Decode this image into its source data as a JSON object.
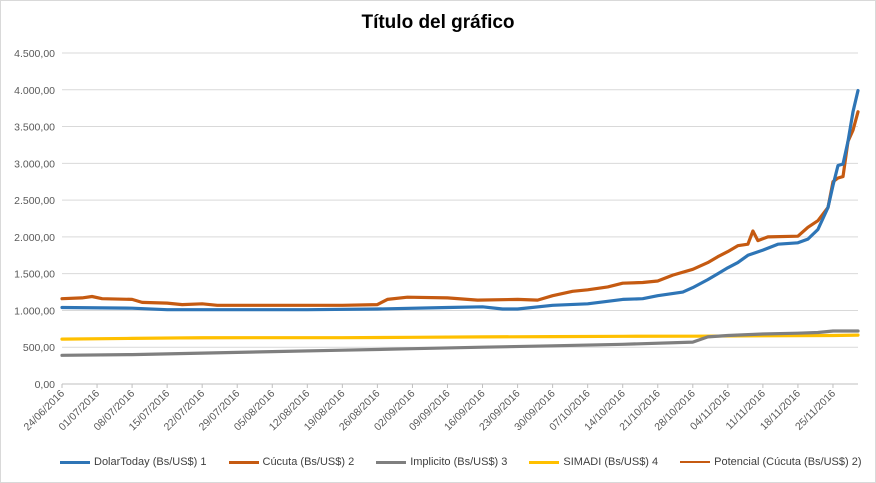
{
  "chart_data": {
    "type": "line",
    "title": "Título del gráfico",
    "xlabel": "",
    "ylabel": "",
    "ylim": [
      0,
      4500
    ],
    "yticks": [
      "0,00",
      "500,00",
      "1.000,00",
      "1.500,00",
      "2.000,00",
      "2.500,00",
      "3.000,00",
      "3.500,00",
      "4.000,00",
      "4.500,00"
    ],
    "xtick_labels": [
      "24/06/2016",
      "01/07/2016",
      "08/07/2016",
      "15/07/2016",
      "22/07/2016",
      "29/07/2016",
      "05/08/2016",
      "12/08/2016",
      "19/08/2016",
      "26/08/2016",
      "02/09/2016",
      "09/09/2016",
      "16/09/2016",
      "23/09/2016",
      "30/09/2016",
      "07/10/2016",
      "14/10/2016",
      "21/10/2016",
      "28/10/2016",
      "04/11/2016",
      "11/11/2016",
      "18/11/2016",
      "25/11/2016"
    ],
    "x_start": "24/06/2016",
    "x_end": "30/11/2016",
    "grid": true,
    "legend_position": "bottom",
    "series": [
      {
        "name": "DolarToday (Bs/US$) 1",
        "color": "#2e75b6",
        "points": [
          [
            "24/06/2016",
            1040
          ],
          [
            "08/07/2016",
            1030
          ],
          [
            "15/07/2016",
            1010
          ],
          [
            "29/07/2016",
            1010
          ],
          [
            "12/08/2016",
            1010
          ],
          [
            "26/08/2016",
            1020
          ],
          [
            "09/09/2016",
            1040
          ],
          [
            "16/09/2016",
            1050
          ],
          [
            "20/09/2016",
            1020
          ],
          [
            "23/09/2016",
            1020
          ],
          [
            "30/09/2016",
            1070
          ],
          [
            "07/10/2016",
            1090
          ],
          [
            "14/10/2016",
            1150
          ],
          [
            "18/10/2016",
            1160
          ],
          [
            "21/10/2016",
            1200
          ],
          [
            "26/10/2016",
            1250
          ],
          [
            "28/10/2016",
            1310
          ],
          [
            "31/10/2016",
            1420
          ],
          [
            "02/11/2016",
            1500
          ],
          [
            "04/11/2016",
            1580
          ],
          [
            "06/11/2016",
            1650
          ],
          [
            "08/11/2016",
            1750
          ],
          [
            "11/11/2016",
            1820
          ],
          [
            "14/11/2016",
            1900
          ],
          [
            "18/11/2016",
            1920
          ],
          [
            "20/11/2016",
            1970
          ],
          [
            "22/11/2016",
            2100
          ],
          [
            "24/11/2016",
            2400
          ],
          [
            "25/11/2016",
            2700
          ],
          [
            "26/11/2016",
            2970
          ],
          [
            "27/11/2016",
            2990
          ],
          [
            "28/11/2016",
            3300
          ],
          [
            "29/11/2016",
            3700
          ],
          [
            "30/11/2016",
            3990
          ]
        ]
      },
      {
        "name": "Cúcuta (Bs/US$) 2",
        "color": "#c55a11",
        "points": [
          [
            "24/06/2016",
            1160
          ],
          [
            "28/06/2016",
            1170
          ],
          [
            "30/06/2016",
            1190
          ],
          [
            "02/07/2016",
            1160
          ],
          [
            "08/07/2016",
            1150
          ],
          [
            "10/07/2016",
            1110
          ],
          [
            "15/07/2016",
            1100
          ],
          [
            "18/07/2016",
            1080
          ],
          [
            "22/07/2016",
            1090
          ],
          [
            "25/07/2016",
            1070
          ],
          [
            "05/08/2016",
            1070
          ],
          [
            "19/08/2016",
            1070
          ],
          [
            "26/08/2016",
            1080
          ],
          [
            "28/08/2016",
            1150
          ],
          [
            "01/09/2016",
            1180
          ],
          [
            "09/09/2016",
            1170
          ],
          [
            "15/09/2016",
            1140
          ],
          [
            "23/09/2016",
            1150
          ],
          [
            "27/09/2016",
            1140
          ],
          [
            "30/09/2016",
            1200
          ],
          [
            "04/10/2016",
            1260
          ],
          [
            "07/10/2016",
            1280
          ],
          [
            "11/10/2016",
            1320
          ],
          [
            "14/10/2016",
            1370
          ],
          [
            "18/10/2016",
            1380
          ],
          [
            "21/10/2016",
            1400
          ],
          [
            "24/10/2016",
            1480
          ],
          [
            "28/10/2016",
            1560
          ],
          [
            "31/10/2016",
            1650
          ],
          [
            "02/11/2016",
            1730
          ],
          [
            "04/11/2016",
            1800
          ],
          [
            "06/11/2016",
            1880
          ],
          [
            "08/11/2016",
            1900
          ],
          [
            "09/11/2016",
            2080
          ],
          [
            "10/11/2016",
            1950
          ],
          [
            "12/11/2016",
            2000
          ],
          [
            "18/11/2016",
            2010
          ],
          [
            "20/11/2016",
            2130
          ],
          [
            "22/11/2016",
            2220
          ],
          [
            "24/11/2016",
            2400
          ],
          [
            "25/11/2016",
            2750
          ],
          [
            "26/11/2016",
            2800
          ],
          [
            "27/11/2016",
            2820
          ],
          [
            "28/11/2016",
            3300
          ],
          [
            "29/11/2016",
            3450
          ],
          [
            "30/11/2016",
            3700
          ]
        ]
      },
      {
        "name": "Implicito (Bs/US$) 3",
        "color": "#7f7f7f",
        "points": [
          [
            "24/06/2016",
            390
          ],
          [
            "08/07/2016",
            400
          ],
          [
            "22/07/2016",
            420
          ],
          [
            "05/08/2016",
            440
          ],
          [
            "19/08/2016",
            460
          ],
          [
            "02/09/2016",
            480
          ],
          [
            "16/09/2016",
            500
          ],
          [
            "30/09/2016",
            520
          ],
          [
            "14/10/2016",
            540
          ],
          [
            "28/10/2016",
            570
          ],
          [
            "31/10/2016",
            640
          ],
          [
            "04/11/2016",
            660
          ],
          [
            "11/11/2016",
            680
          ],
          [
            "18/11/2016",
            690
          ],
          [
            "22/11/2016",
            700
          ],
          [
            "25/11/2016",
            720
          ],
          [
            "30/11/2016",
            720
          ]
        ]
      },
      {
        "name": "SIMADI (Bs/US$) 4",
        "color": "#ffc000",
        "points": [
          [
            "24/06/2016",
            610
          ],
          [
            "08/07/2016",
            620
          ],
          [
            "22/07/2016",
            630
          ],
          [
            "05/08/2016",
            630
          ],
          [
            "19/08/2016",
            630
          ],
          [
            "02/09/2016",
            635
          ],
          [
            "16/09/2016",
            640
          ],
          [
            "30/09/2016",
            645
          ],
          [
            "14/10/2016",
            648
          ],
          [
            "28/10/2016",
            650
          ],
          [
            "11/11/2016",
            655
          ],
          [
            "25/11/2016",
            660
          ],
          [
            "30/11/2016",
            665
          ]
        ]
      },
      {
        "name": "Potencial (Cúcuta (Bs/US$) 2)",
        "color": "#c55a11",
        "trendline": true,
        "points": [
          [
            "24/06/2016",
            610
          ],
          [
            "30/11/2016",
            660
          ]
        ]
      }
    ]
  }
}
